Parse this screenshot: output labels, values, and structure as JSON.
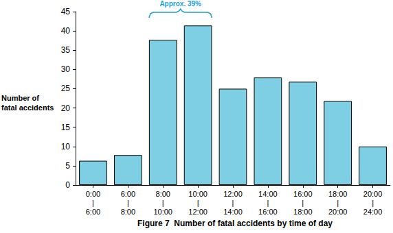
{
  "chart_data": {
    "type": "bar",
    "title": "Figure 7  Number of fatal accidents by time of day",
    "y_label": "Number of\nfatal accidents",
    "categories": [
      "0:00\n|\n6:00",
      "6:00\n|\n8:00",
      "8:00\n|\n10:00",
      "10:00\n|\n12:00",
      "12:00\n|\n14:00",
      "14:00\n|\n16:00",
      "16:00\n|\n18:00",
      "18:00\n|\n20:00",
      "20:00\n|\n24:00"
    ],
    "values": [
      6.3,
      7.8,
      37.7,
      41.4,
      25,
      27.9,
      26.8,
      21.8,
      10
    ],
    "color": "#7ecfe3",
    "ylim": [
      0,
      45
    ],
    "yticks": [
      0,
      5,
      10,
      15,
      20,
      25,
      30,
      35,
      40,
      45
    ],
    "grid": false,
    "annotations": [
      {
        "text": "Approx. 39%",
        "from": "8:00\n|\n10:00",
        "to": "10:00\n|\n12:00"
      }
    ]
  }
}
